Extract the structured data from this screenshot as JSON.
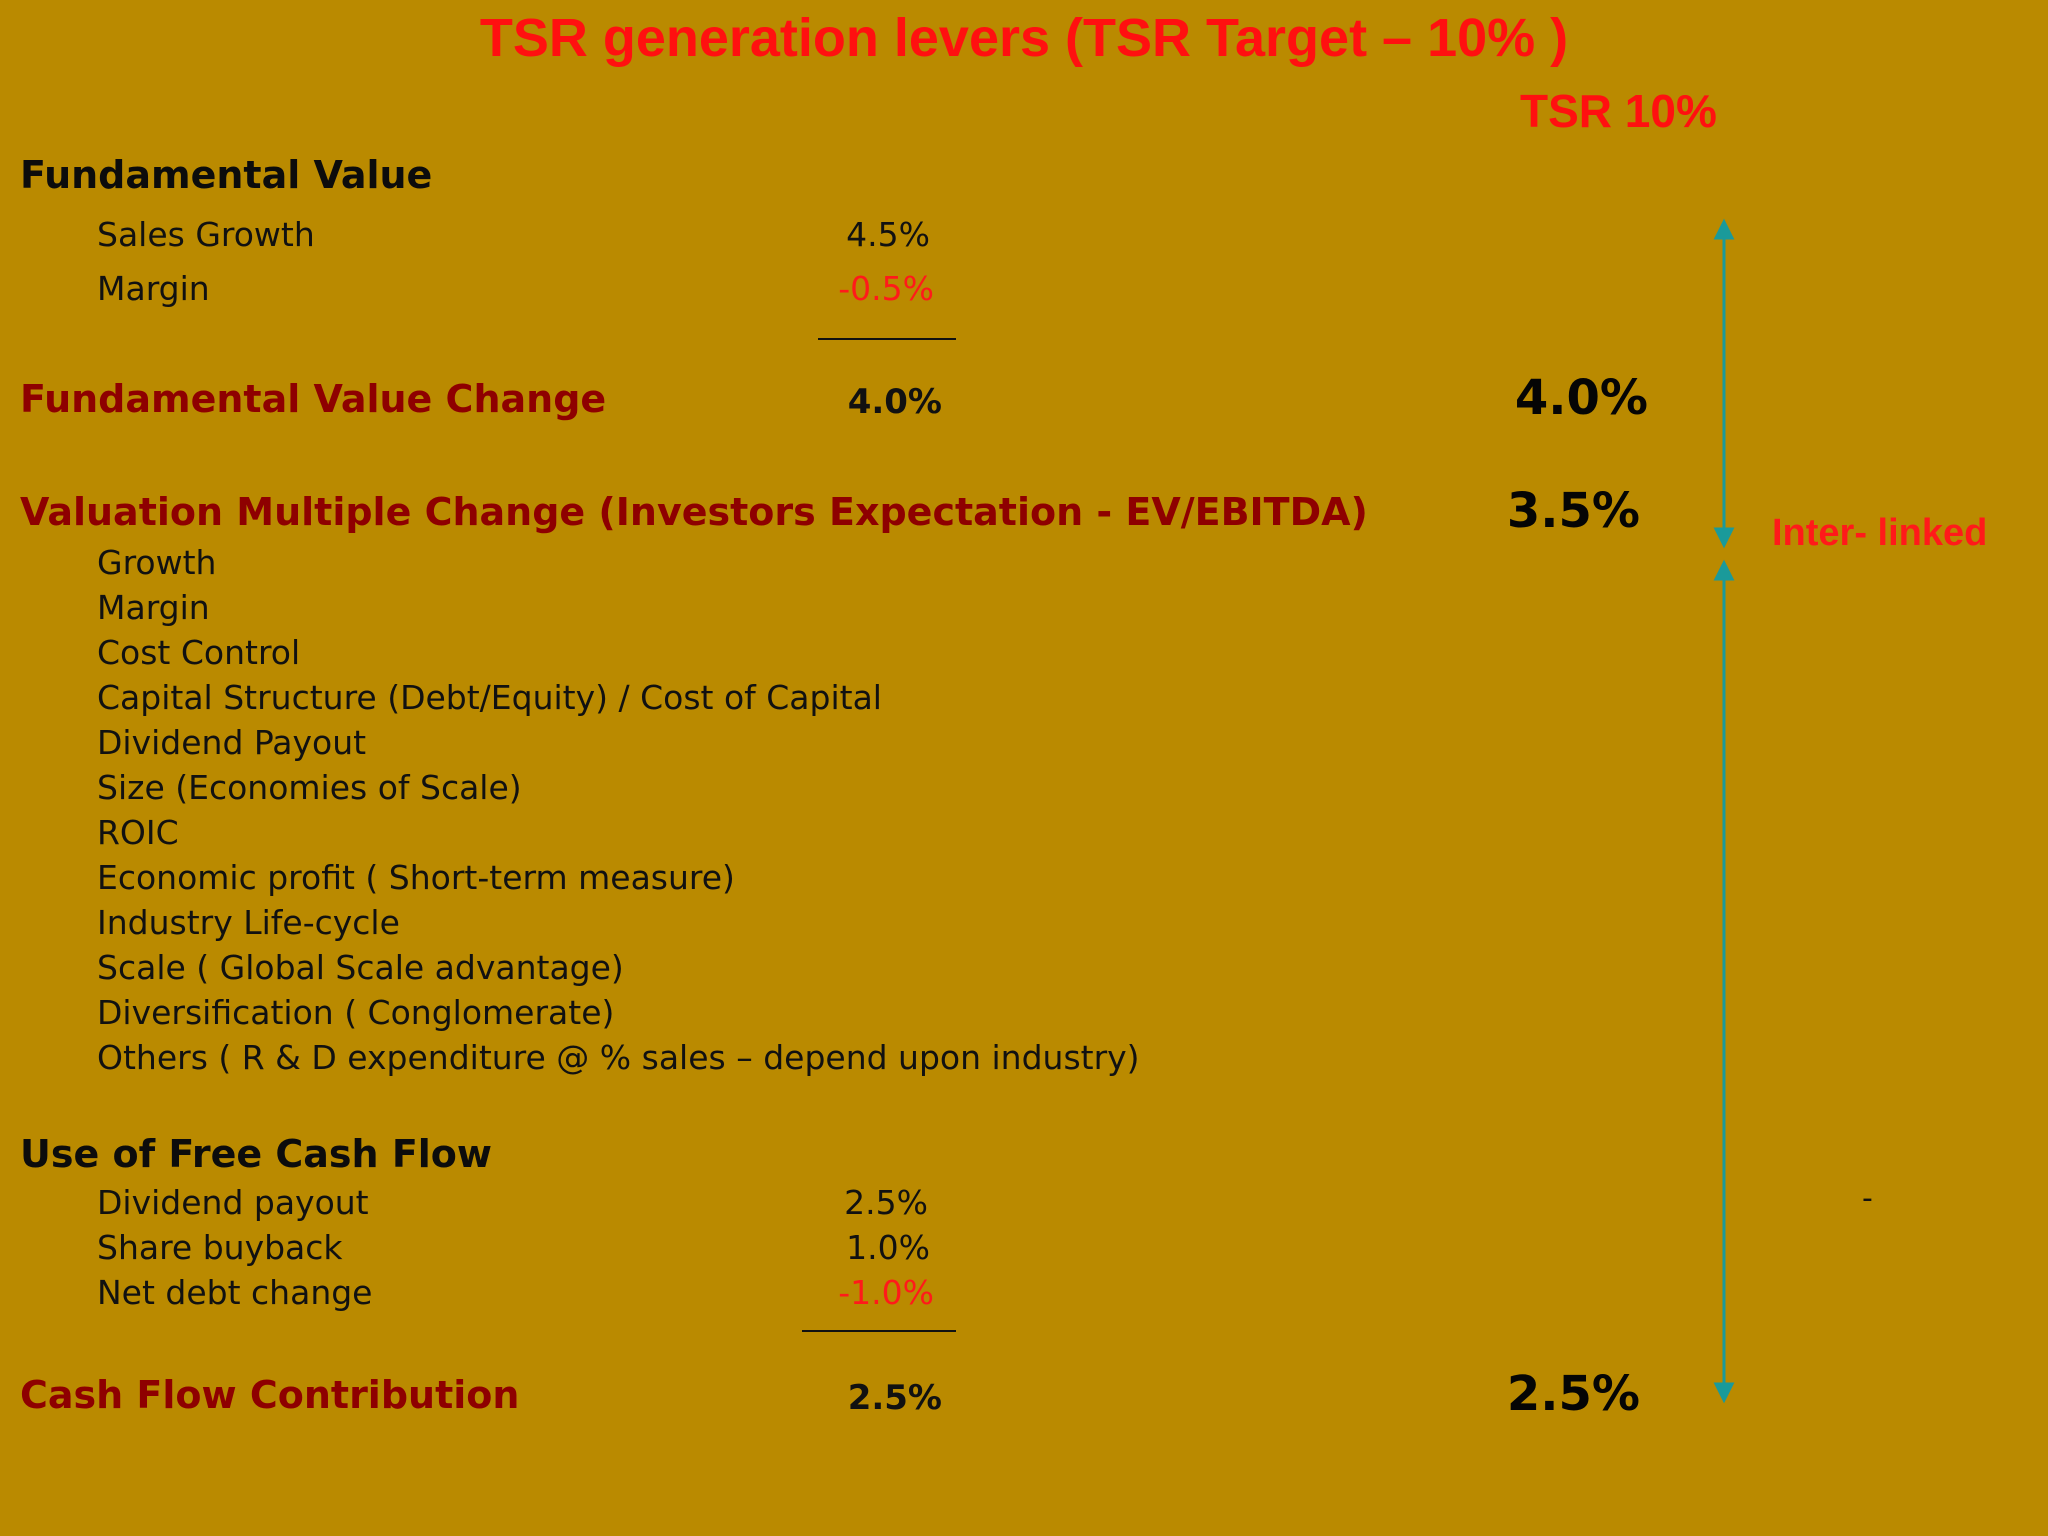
{
  "title": "TSR generation levers (TSR Target – 10% )",
  "tsr_header": "TSR 10%",
  "fundamental": {
    "heading": "Fundamental Value",
    "items": [
      {
        "label": "Sales Growth",
        "value": "4.5%"
      },
      {
        "label": "Margin",
        "value": "-0.5%"
      }
    ],
    "change_label": "Fundamental Value Change",
    "change_value": "4.0%",
    "tsr_value": "4.0%"
  },
  "valuation": {
    "heading": "Valuation Multiple Change (Investors Expectation - EV/EBITDA)",
    "tsr_value": "3.5%",
    "items": [
      "Growth",
      "Margin",
      "Cost Control",
      "Capital Structure (Debt/Equity) / Cost of Capital",
      "Dividend Payout",
      "Size (Economies of Scale)",
      "ROIC",
      "Economic profit ( Short-term measure)",
      "Industry Life-cycle",
      "Scale ( Global Scale advantage)",
      "Diversification ( Conglomerate)",
      "Others ( R & D expenditure @ % sales – depend upon industry)"
    ]
  },
  "fcf": {
    "heading": "Use of Free Cash Flow",
    "items": [
      {
        "label": "Dividend payout",
        "value": "2.5%"
      },
      {
        "label": "Share buyback",
        "value": "1.0%"
      },
      {
        "label": "Net debt change",
        "value": "-1.0%"
      }
    ],
    "contribution_label": "Cash Flow Contribution",
    "contribution_value": "2.5%",
    "tsr_value": "2.5%"
  },
  "interlinked_label": "Inter- linked",
  "dash_mark": "-",
  "colors": {
    "background": "#BA8A00",
    "title_red": "#FF1010",
    "heading_dark_red": "#8E0000",
    "negative_red": "#FF1A1A",
    "arrow_teal": "#1A9A9A"
  }
}
